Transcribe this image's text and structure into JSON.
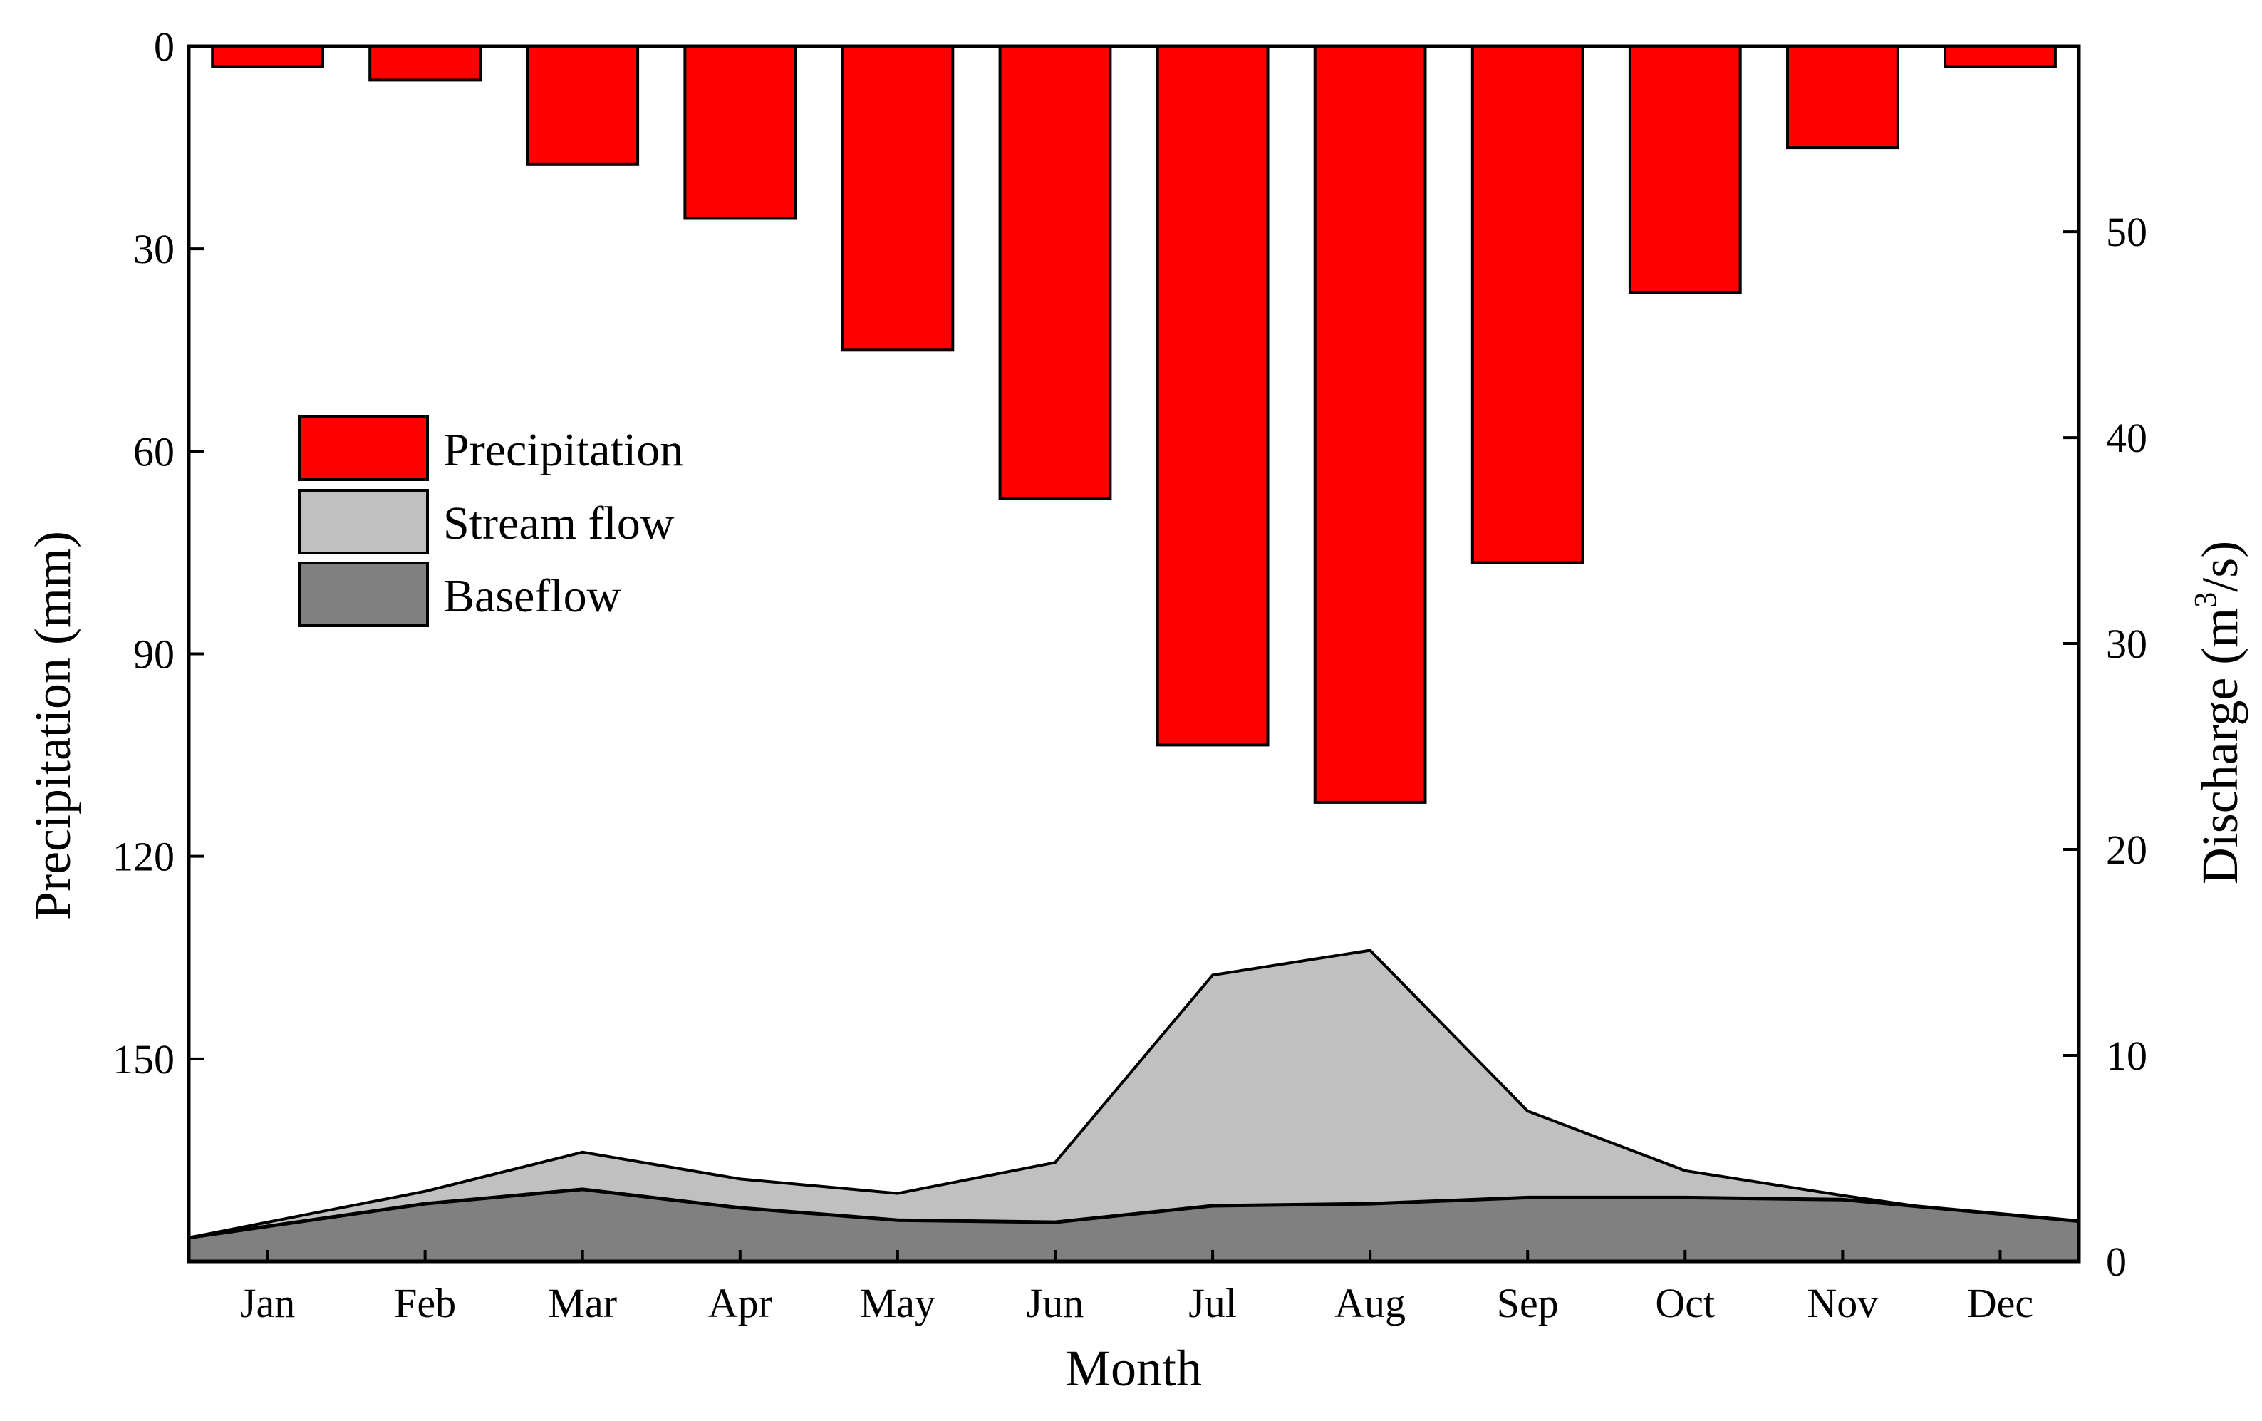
{
  "chart_data": {
    "type": "bar+area",
    "categories": [
      "Jan",
      "Feb",
      "Mar",
      "Apr",
      "May",
      "Jun",
      "Jul",
      "Aug",
      "Sep",
      "Oct",
      "Nov",
      "Dec"
    ],
    "xlabel": "Month",
    "left_axis": {
      "label": "Precipitation (mm)",
      "range": [
        0,
        180
      ],
      "inverted": true,
      "ticks": [
        0,
        30,
        60,
        90,
        120,
        150
      ]
    },
    "right_axis": {
      "label_prefix": "Discharge (m",
      "label_superscript": "3",
      "label_suffix": "/s)",
      "range": [
        0,
        59
      ],
      "ticks": [
        0,
        10,
        20,
        30,
        40,
        50
      ]
    },
    "series": [
      {
        "name": "Precipitation",
        "kind": "bar",
        "axis": "left",
        "color": "#ff0000",
        "values": [
          3,
          5,
          17.5,
          25.5,
          45,
          67,
          103.5,
          112,
          76.5,
          36.5,
          15,
          3
        ]
      },
      {
        "name": "Stream flow",
        "kind": "area",
        "axis": "right",
        "color": "#c0c0c0",
        "values": [
          1.9,
          3.4,
          5.3,
          4.0,
          3.3,
          4.8,
          13.9,
          15.1,
          7.3,
          4.4,
          3.2,
          2.1
        ]
      },
      {
        "name": "Baseflow",
        "kind": "area",
        "axis": "right",
        "color": "#808080",
        "values": [
          1.7,
          2.8,
          3.5,
          2.6,
          2.0,
          1.9,
          2.7,
          2.8,
          3.1,
          3.1,
          3.0,
          2.3
        ]
      }
    ],
    "legend": {
      "position": "upper-left",
      "entries": [
        "Precipitation",
        "Stream flow",
        "Baseflow"
      ]
    }
  }
}
